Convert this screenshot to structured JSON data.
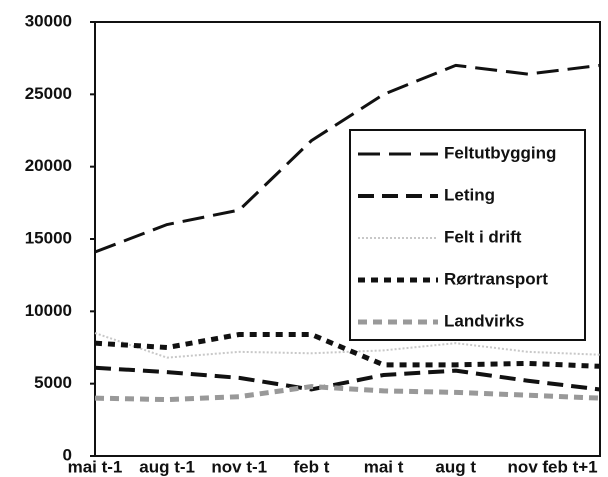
{
  "chart_data": {
    "type": "line",
    "categories": [
      "mai t-1",
      "aug t-1",
      "nov t-1",
      "feb t",
      "mai t",
      "aug t",
      "nov t",
      "feb t+1"
    ],
    "series": [
      {
        "name": "Feltutbygging",
        "color": "#111111",
        "dash": "22,9",
        "width": 3,
        "values": [
          14100,
          16000,
          17000,
          21800,
          25000,
          27000,
          26400,
          27000
        ]
      },
      {
        "name": "Leting",
        "color": "#111111",
        "dash": "16,8",
        "width": 4,
        "values": [
          6100,
          5800,
          5400,
          4600,
          5600,
          5900,
          5200,
          4600
        ]
      },
      {
        "name": "Felt i drift",
        "color": "#c8c8c8",
        "dash": "2,2",
        "width": 2,
        "values": [
          8500,
          6800,
          7200,
          7100,
          7300,
          7800,
          7200,
          7000
        ]
      },
      {
        "name": "Rørtransport",
        "color": "#111111",
        "dash": "7,6",
        "width": 5,
        "values": [
          7800,
          7500,
          8400,
          8400,
          6300,
          6300,
          6400,
          6200
        ]
      },
      {
        "name": "Landvirks",
        "color": "#999999",
        "dash": "9,6",
        "width": 5,
        "values": [
          4000,
          3900,
          4100,
          4800,
          4500,
          4400,
          4200,
          4000
        ]
      }
    ],
    "ylim": [
      0,
      30000
    ],
    "yticks": [
      0,
      5000,
      10000,
      15000,
      20000,
      25000,
      30000
    ],
    "grid": false
  }
}
